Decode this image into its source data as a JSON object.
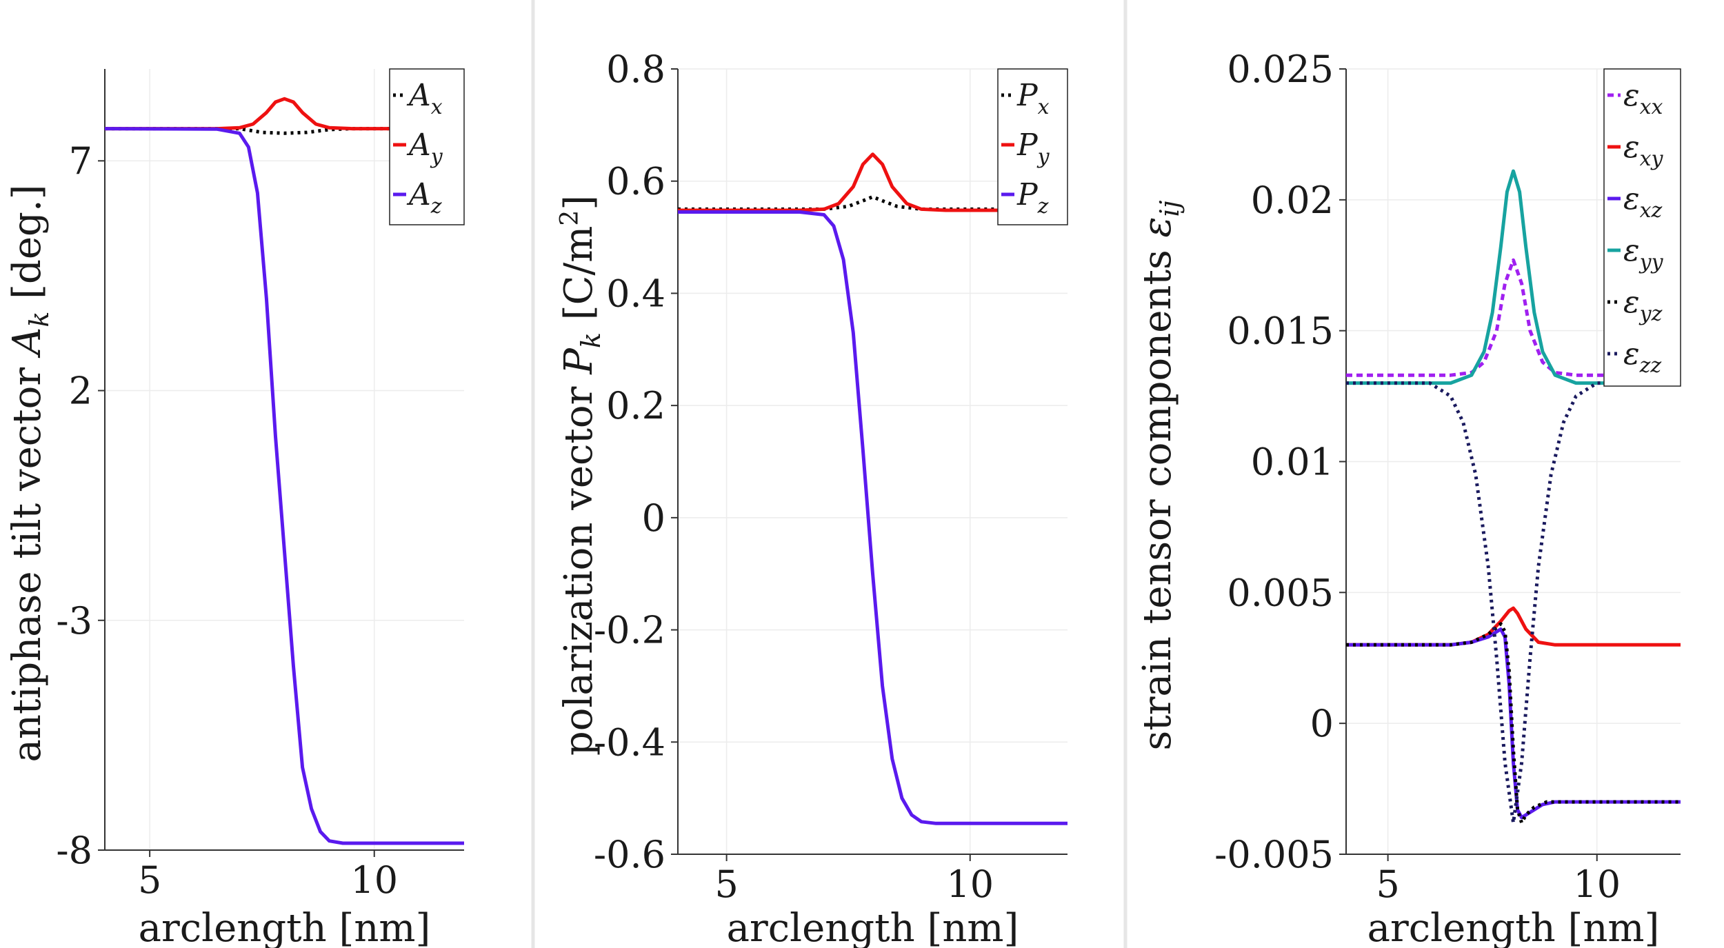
{
  "chart_data": [
    {
      "type": "line",
      "xlabel": "arclength [nm]",
      "ylabel_prefix": "antiphase tilt vector ",
      "ylabel_symbol": "A",
      "ylabel_sub": "k",
      "ylabel_suffix": " [deg.]",
      "xlim": [
        4,
        12
      ],
      "ylim": [
        -8,
        9
      ],
      "xticks": [
        5,
        10
      ],
      "yticks": [
        -8,
        -3,
        2,
        7
      ],
      "series": [
        {
          "name": "A",
          "sub": "x",
          "color": "#000000",
          "dash": "dotted",
          "x": [
            4,
            6,
            6.5,
            7,
            7.5,
            8,
            8.5,
            9,
            9.5,
            10,
            12
          ],
          "y": [
            7.7,
            7.7,
            7.7,
            7.7,
            7.62,
            7.6,
            7.62,
            7.68,
            7.7,
            7.7,
            7.7
          ]
        },
        {
          "name": "A",
          "sub": "y",
          "color": "#ee1111",
          "dash": "solid",
          "x": [
            4,
            6.5,
            7,
            7.3,
            7.6,
            7.8,
            8.0,
            8.2,
            8.4,
            8.7,
            9,
            9.5,
            12
          ],
          "y": [
            7.7,
            7.7,
            7.72,
            7.8,
            8.05,
            8.28,
            8.35,
            8.28,
            8.05,
            7.8,
            7.72,
            7.7,
            7.7
          ]
        },
        {
          "name": "A",
          "sub": "z",
          "color": "#5a1aee",
          "dash": "solid",
          "x": [
            4,
            6.5,
            7.0,
            7.2,
            7.4,
            7.6,
            7.8,
            8.0,
            8.2,
            8.4,
            8.6,
            8.8,
            9.0,
            9.3,
            9.7,
            12
          ],
          "y": [
            7.7,
            7.69,
            7.6,
            7.3,
            6.3,
            4.0,
            1.0,
            -1.5,
            -4.0,
            -6.2,
            -7.1,
            -7.6,
            -7.8,
            -7.85,
            -7.85,
            -7.85
          ]
        }
      ]
    },
    {
      "type": "line",
      "xlabel": "arclength [nm]",
      "ylabel_prefix": "polarization vector ",
      "ylabel_symbol": "P",
      "ylabel_sub": "k",
      "ylabel_suffix": " [C/m",
      "ylabel_sup": "2",
      "ylabel_end": "]",
      "xlim": [
        4,
        12
      ],
      "ylim": [
        -0.6,
        0.8
      ],
      "xticks": [
        5,
        10
      ],
      "yticks": [
        -0.6,
        -0.4,
        -0.2,
        0,
        0.2,
        0.4,
        0.6,
        0.8
      ],
      "ytick_labels": [
        "-0.6",
        "-0.4",
        "-0.2",
        "0",
        "0.2",
        "0.4",
        "0.6",
        "0.8"
      ],
      "series": [
        {
          "name": "P",
          "sub": "x",
          "color": "#000000",
          "dash": "dotted",
          "x": [
            4,
            6.5,
            7.0,
            7.5,
            7.8,
            8.0,
            8.2,
            8.5,
            9.0,
            9.5,
            12
          ],
          "y": [
            0.55,
            0.55,
            0.55,
            0.555,
            0.565,
            0.572,
            0.565,
            0.555,
            0.55,
            0.55,
            0.55
          ]
        },
        {
          "name": "P",
          "sub": "y",
          "color": "#ee1111",
          "dash": "solid",
          "x": [
            4,
            6.5,
            7.0,
            7.3,
            7.6,
            7.8,
            8.0,
            8.2,
            8.4,
            8.7,
            9.0,
            9.5,
            12
          ],
          "y": [
            0.548,
            0.548,
            0.55,
            0.56,
            0.59,
            0.63,
            0.648,
            0.63,
            0.59,
            0.56,
            0.55,
            0.548,
            0.548
          ]
        },
        {
          "name": "P",
          "sub": "z",
          "color": "#5a1aee",
          "dash": "solid",
          "x": [
            4,
            6.5,
            7.0,
            7.2,
            7.4,
            7.6,
            7.8,
            8.0,
            8.2,
            8.4,
            8.6,
            8.8,
            9.0,
            9.3,
            9.8,
            12
          ],
          "y": [
            0.545,
            0.545,
            0.54,
            0.52,
            0.46,
            0.33,
            0.12,
            -0.1,
            -0.3,
            -0.43,
            -0.5,
            -0.53,
            -0.542,
            -0.545,
            -0.545,
            -0.545
          ]
        }
      ]
    },
    {
      "type": "line",
      "xlabel": "arclength [nm]",
      "ylabel_prefix": "strain tensor components ",
      "ylabel_symbol": "ε",
      "ylabel_sub": "ij",
      "ylabel_suffix": "",
      "xlim": [
        4,
        12
      ],
      "ylim": [
        -0.005,
        0.025
      ],
      "xticks": [
        5,
        10
      ],
      "yticks": [
        -0.005,
        0,
        0.005,
        0.01,
        0.015,
        0.02,
        0.025
      ],
      "ytick_labels": [
        "-0.005",
        "0",
        "0.005",
        "0.01",
        "0.015",
        "0.02",
        "0.025"
      ],
      "series": [
        {
          "name": "ε",
          "sub": "xx",
          "color": "#a020f0",
          "dash": "dashed",
          "x": [
            4,
            6.5,
            7.0,
            7.3,
            7.6,
            7.8,
            8.0,
            8.2,
            8.4,
            8.7,
            9.0,
            9.5,
            12
          ],
          "y": [
            0.0133,
            0.0133,
            0.0134,
            0.0138,
            0.015,
            0.0168,
            0.0177,
            0.0168,
            0.015,
            0.0138,
            0.0134,
            0.0133,
            0.0133
          ]
        },
        {
          "name": "ε",
          "sub": "xy",
          "color": "#ee1111",
          "dash": "solid",
          "x": [
            4,
            6.5,
            7.0,
            7.4,
            7.7,
            7.9,
            8.0,
            8.1,
            8.3,
            8.6,
            9.0,
            12
          ],
          "y": [
            0.003,
            0.003,
            0.0031,
            0.0034,
            0.0039,
            0.0043,
            0.0044,
            0.0042,
            0.0036,
            0.0031,
            0.003,
            0.003
          ]
        },
        {
          "name": "ε",
          "sub": "xz",
          "color": "#5a1aee",
          "dash": "solid",
          "x": [
            4,
            6.5,
            7.0,
            7.4,
            7.7,
            7.8,
            7.9,
            8.0,
            8.1,
            8.2,
            8.4,
            8.7,
            9.0,
            9.5,
            12
          ],
          "y": [
            0.003,
            0.003,
            0.0031,
            0.0033,
            0.0036,
            0.0033,
            0.0015,
            -0.0015,
            -0.0033,
            -0.0036,
            -0.0034,
            -0.0031,
            -0.003,
            -0.003,
            -0.003
          ]
        },
        {
          "name": "ε",
          "sub": "yy",
          "color": "#17a3a0",
          "dash": "solid",
          "x": [
            4,
            6.5,
            7.0,
            7.3,
            7.5,
            7.7,
            7.85,
            8.0,
            8.15,
            8.3,
            8.5,
            8.7,
            9.0,
            9.5,
            12
          ],
          "y": [
            0.013,
            0.013,
            0.0133,
            0.0142,
            0.0157,
            0.0182,
            0.0203,
            0.0211,
            0.0203,
            0.0182,
            0.0157,
            0.0142,
            0.0133,
            0.013,
            0.013
          ]
        },
        {
          "name": "ε",
          "sub": "yz",
          "color": "#000000",
          "dash": "dotted",
          "x": [
            4,
            6.5,
            7.0,
            7.4,
            7.7,
            7.8,
            7.9,
            8.0,
            8.1,
            8.2,
            8.3,
            8.5,
            8.8,
            9.2,
            12
          ],
          "y": [
            0.003,
            0.003,
            0.0031,
            0.0034,
            0.0038,
            0.0035,
            0.002,
            -0.001,
            -0.0033,
            -0.0038,
            -0.0035,
            -0.0032,
            -0.003,
            -0.003,
            -0.003
          ]
        },
        {
          "name": "ε",
          "sub": "zz",
          "color": "#1a1a5e",
          "dash": "dotted",
          "x": [
            4,
            6.0,
            6.5,
            6.8,
            7.1,
            7.4,
            7.6,
            7.8,
            8.0,
            8.2,
            8.4,
            8.6,
            8.9,
            9.2,
            9.5,
            10.0,
            12
          ],
          "y": [
            0.013,
            0.013,
            0.0125,
            0.0115,
            0.0095,
            0.006,
            0.0025,
            -0.0015,
            -0.0038,
            -0.0015,
            0.0025,
            0.006,
            0.0095,
            0.0115,
            0.0125,
            0.013,
            0.013
          ]
        }
      ]
    }
  ]
}
